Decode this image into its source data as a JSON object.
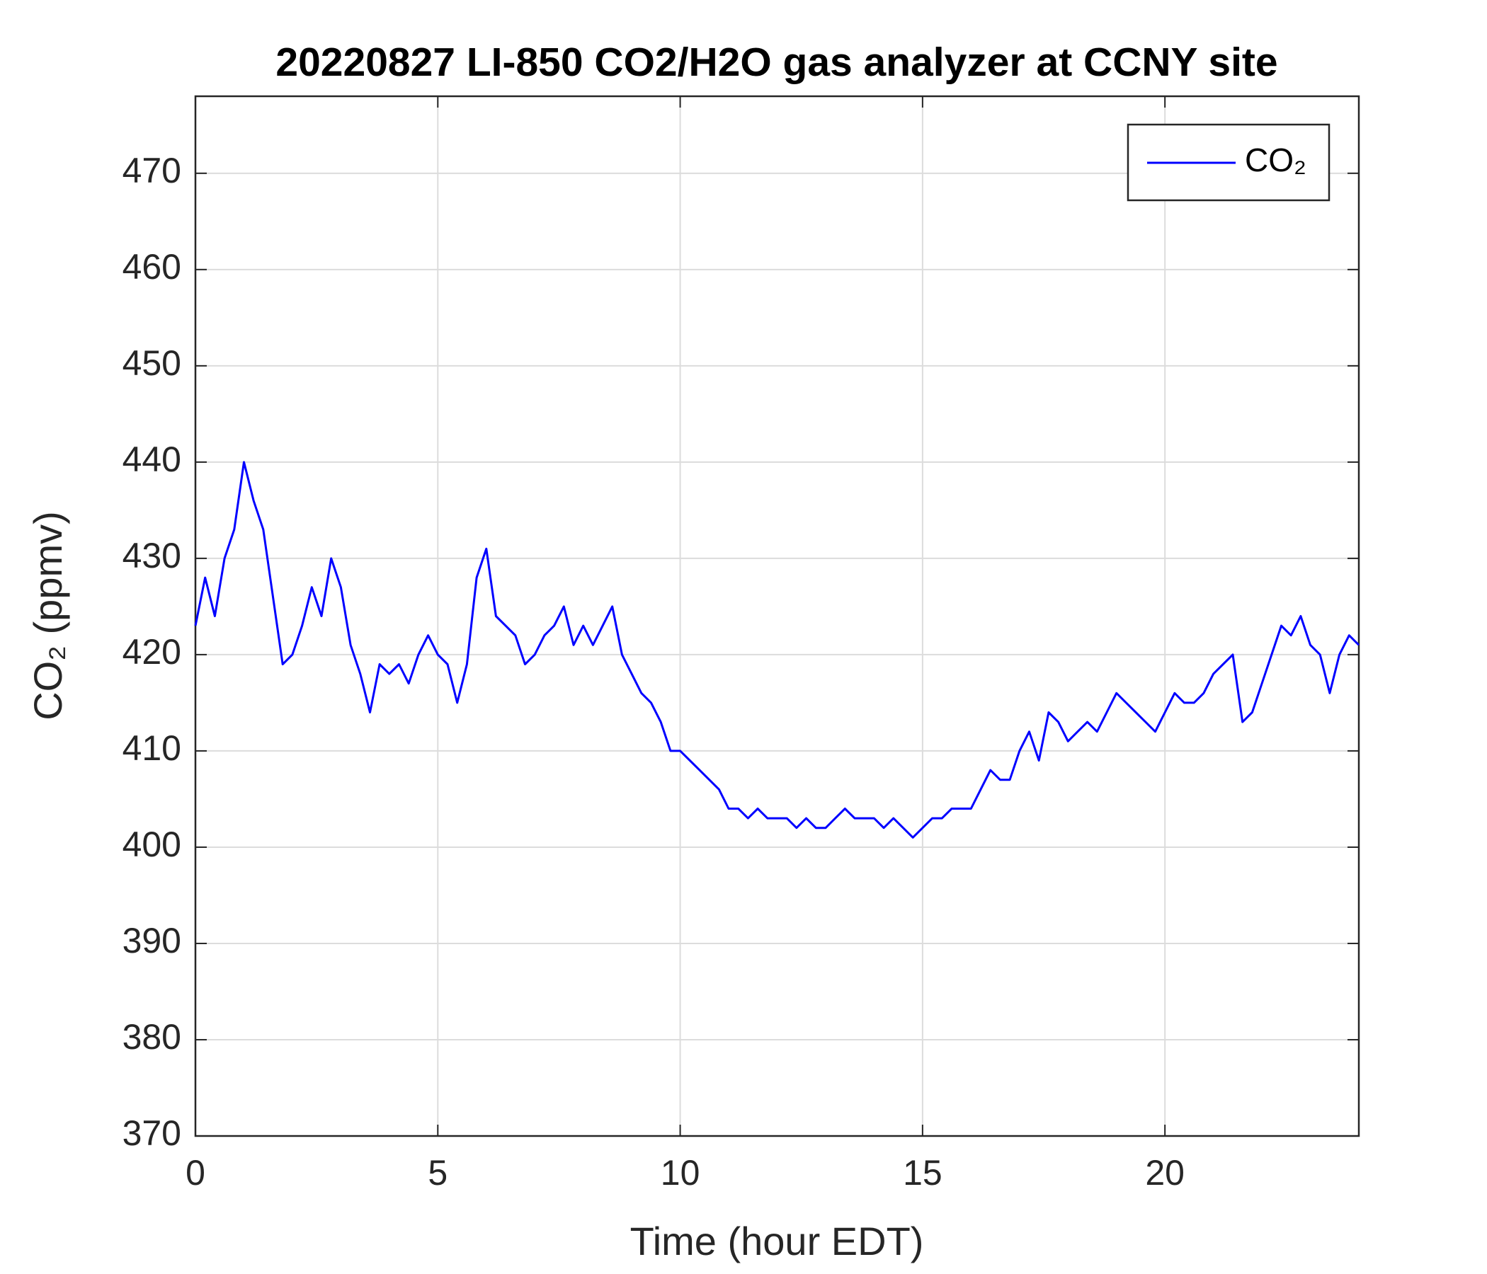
{
  "chart_data": {
    "type": "line",
    "title": "20220827 LI-850 CO2/H2O gas analyzer at CCNY site",
    "xlabel": "Time (hour EDT)",
    "ylabel": "CO₂ (ppmv)",
    "x": [
      0,
      0.2,
      0.4,
      0.6,
      0.8,
      1,
      1.2,
      1.4,
      1.6,
      1.8,
      2,
      2.2,
      2.4,
      2.6,
      2.8,
      3,
      3.2,
      3.4,
      3.6,
      3.8,
      4,
      4.2,
      4.4,
      4.6,
      4.8,
      5,
      5.2,
      5.4,
      5.6,
      5.8,
      6,
      6.2,
      6.4,
      6.6,
      6.8,
      7,
      7.2,
      7.4,
      7.6,
      7.8,
      8,
      8.2,
      8.4,
      8.6,
      8.8,
      9,
      9.2,
      9.4,
      9.6,
      9.8,
      10,
      10.2,
      10.4,
      10.6,
      10.8,
      11,
      11.2,
      11.4,
      11.6,
      11.8,
      12,
      12.2,
      12.4,
      12.6,
      12.8,
      13,
      13.2,
      13.4,
      13.6,
      13.8,
      14,
      14.2,
      14.4,
      14.6,
      14.8,
      15,
      15.2,
      15.4,
      15.6,
      15.8,
      16,
      16.2,
      16.4,
      16.6,
      16.8,
      17,
      17.2,
      17.4,
      17.6,
      17.8,
      18,
      18.2,
      18.4,
      18.6,
      18.8,
      19,
      19.2,
      19.4,
      19.6,
      19.8,
      20,
      20.2,
      20.4,
      20.6,
      20.8,
      21,
      21.2,
      21.4,
      21.6,
      21.8,
      22,
      22.2,
      22.4,
      22.6,
      22.8,
      23,
      23.2,
      23.4,
      23.6,
      23.8,
      24
    ],
    "series": [
      {
        "name": "CO₂",
        "color": "#0000ff",
        "values": [
          423,
          428,
          424,
          430,
          433,
          440,
          436,
          433,
          426,
          419,
          420,
          423,
          427,
          424,
          430,
          427,
          421,
          418,
          414,
          419,
          418,
          419,
          417,
          420,
          422,
          420,
          419,
          415,
          419,
          428,
          431,
          424,
          423,
          422,
          419,
          420,
          422,
          423,
          425,
          421,
          423,
          421,
          423,
          425,
          420,
          418,
          416,
          415,
          413,
          410,
          410,
          409,
          408,
          407,
          406,
          404,
          404,
          403,
          404,
          403,
          403,
          403,
          402,
          403,
          402,
          402,
          403,
          404,
          403,
          403,
          403,
          402,
          403,
          402,
          401,
          402,
          403,
          403,
          404,
          404,
          404,
          406,
          408,
          407,
          407,
          410,
          412,
          409,
          414,
          413,
          411,
          412,
          413,
          412,
          414,
          416,
          415,
          414,
          413,
          412,
          414,
          416,
          415,
          415,
          416,
          418,
          419,
          420,
          413,
          414,
          417,
          420,
          423,
          422,
          424,
          421,
          420,
          416,
          420,
          422,
          421
        ]
      }
    ],
    "xlim": [
      0,
      24
    ],
    "xticks": [
      0,
      5,
      10,
      15,
      20
    ],
    "ylim": [
      370,
      478
    ],
    "yticks": [
      370,
      380,
      390,
      400,
      410,
      420,
      430,
      440,
      450,
      460,
      470
    ],
    "grid": true,
    "legend": "northeast"
  }
}
